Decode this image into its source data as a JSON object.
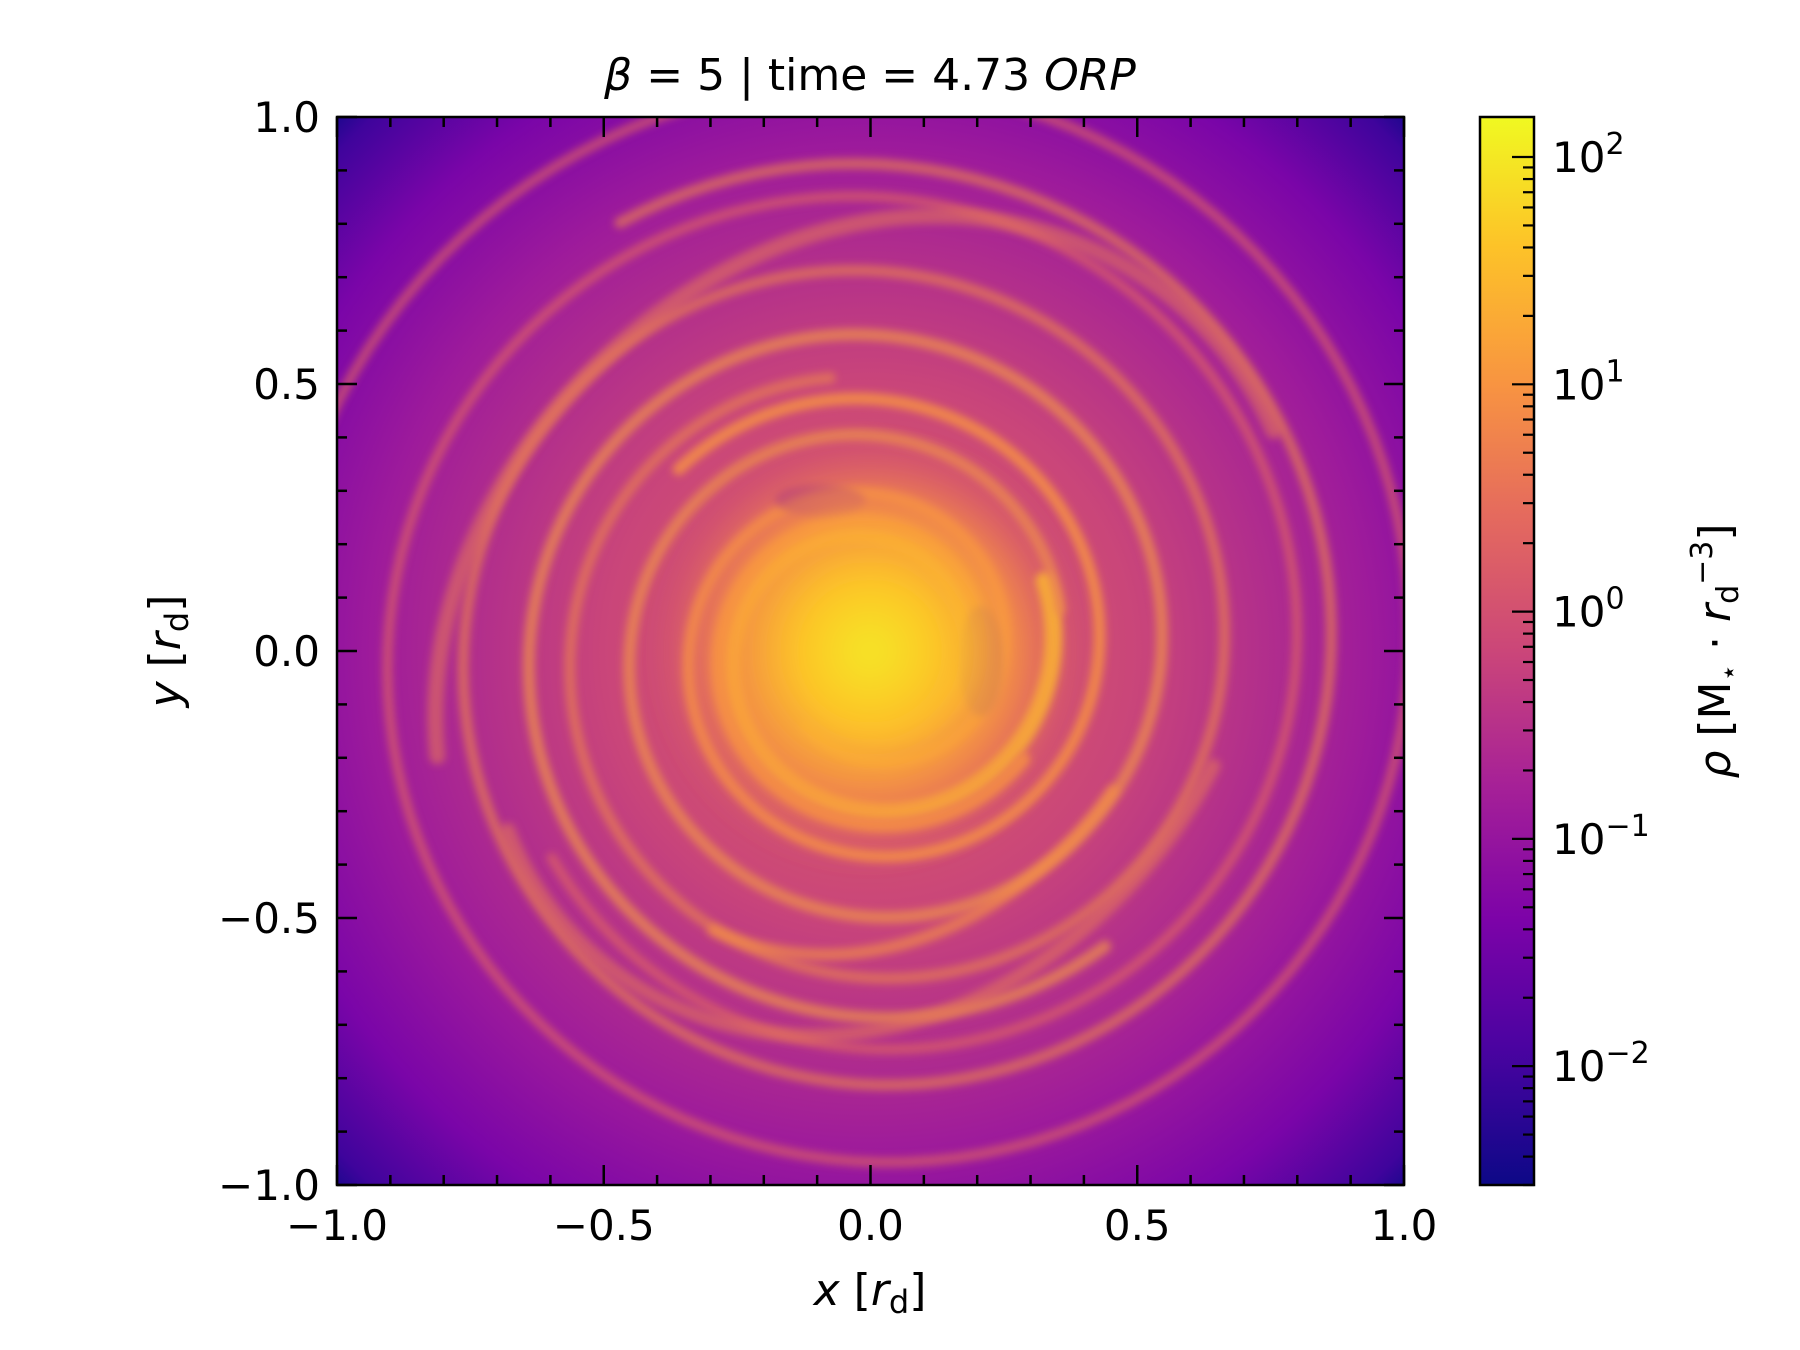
{
  "chart_data": {
    "type": "heatmap",
    "title": "β = 5 | time = 4.73 ORP",
    "xlabel": "x [r_d]",
    "ylabel": "y [r_d]",
    "xlim": [
      -1.0,
      1.0
    ],
    "ylim": [
      -1.0,
      1.0
    ],
    "xticks": [
      -1.0,
      -0.5,
      0.0,
      0.5,
      1.0
    ],
    "yticks": [
      -1.0,
      -0.5,
      0.0,
      0.5,
      1.0
    ],
    "xtick_labels": [
      "−1.0",
      "−0.5",
      "0.0",
      "0.5",
      "1.0"
    ],
    "ytick_labels": [
      "−1.0",
      "−0.5",
      "0.0",
      "0.5",
      "1.0"
    ],
    "colormap": "plasma",
    "colorbar": {
      "label": "ρ [M⋆ · r_d^−3]",
      "scale": "log",
      "range": [
        0.003,
        150
      ],
      "ticks": [
        0.01,
        0.1,
        1,
        10,
        100
      ],
      "tick_labels": [
        "10^−2",
        "10^−1",
        "10^0",
        "10^1",
        "10^2"
      ]
    },
    "description_values": {
      "central_density": 100,
      "spiral_arm_density": 10,
      "background_density": 0.3,
      "corner_density": 0.005
    },
    "grid": false
  }
}
